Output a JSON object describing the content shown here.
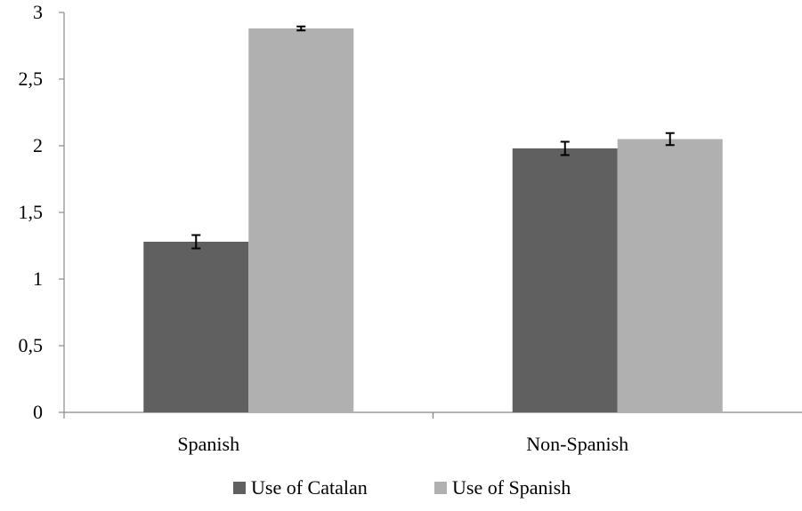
{
  "chart_data": {
    "type": "bar",
    "categories": [
      "Spanish",
      "Non-Spanish"
    ],
    "series": [
      {
        "name": "Use of Catalan",
        "values": [
          1.28,
          1.98
        ],
        "errors": [
          0.05,
          0.05
        ],
        "color": "#606060"
      },
      {
        "name": "Use of Spanish",
        "values": [
          2.88,
          2.05
        ],
        "errors": [
          0.015,
          0.045
        ],
        "color": "#b0b0b0"
      }
    ],
    "yticks": [
      "0",
      "0,5",
      "1",
      "1,5",
      "2",
      "2,5",
      "3"
    ],
    "ytick_values": [
      0,
      0.5,
      1,
      1.5,
      2,
      2.5,
      3
    ],
    "ylim": [
      0,
      3
    ],
    "title": "",
    "xlabel": "",
    "ylabel": "",
    "grid": false,
    "legend_position": "bottom"
  }
}
